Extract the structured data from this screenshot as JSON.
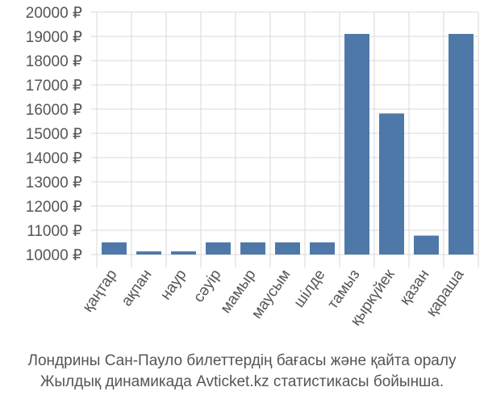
{
  "chart_data": {
    "type": "bar",
    "categories": [
      "қаңтар",
      "ақпан",
      "наур",
      "сәуір",
      "мамыр",
      "маусым",
      "шілде",
      "тамыз",
      "қыркүйек",
      "қазан",
      "қараша"
    ],
    "values": [
      10500,
      10130,
      10130,
      10500,
      10500,
      10500,
      10500,
      19100,
      15820,
      10780,
      19100
    ],
    "ylim": [
      10000,
      20000
    ],
    "ytick_step": 1000,
    "ytick_suffix": " ₽",
    "grid": true,
    "bar_color": "#4e78a8",
    "title": "",
    "xlabel": "",
    "ylabel": ""
  },
  "caption": {
    "line1": "Лондрины Сан-Пауло билеттердің бағасы және қайта оралу",
    "line2": "Жылдық динамикада Avticket.kz статистикасы бойынша."
  }
}
